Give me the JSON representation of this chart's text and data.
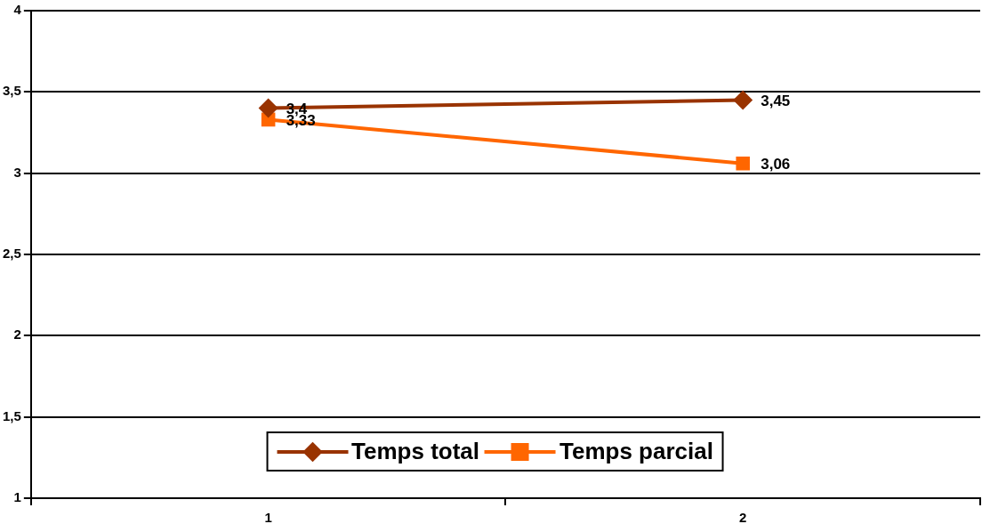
{
  "chart_data": {
    "type": "line",
    "categories": [
      "1",
      "2"
    ],
    "series": [
      {
        "name": "Temps total",
        "color": "#993300",
        "values": [
          3.4,
          3.45
        ],
        "value_labels": [
          "3,4",
          "3,45"
        ],
        "marker": "diamond"
      },
      {
        "name": "Temps parcial",
        "color": "#ff6600",
        "values": [
          3.33,
          3.06
        ],
        "value_labels": [
          "3,33",
          "3,06"
        ],
        "marker": "square"
      }
    ],
    "ylim": [
      1,
      4
    ],
    "yticks": [
      1,
      {
        "value": 1.5,
        "label": "1,5"
      },
      2,
      {
        "value": 2.5,
        "label": "2,5"
      },
      3,
      {
        "value": 3.5,
        "label": "3,5"
      },
      4
    ],
    "grid": "y",
    "legend": "bottom",
    "line_style": "solid"
  }
}
